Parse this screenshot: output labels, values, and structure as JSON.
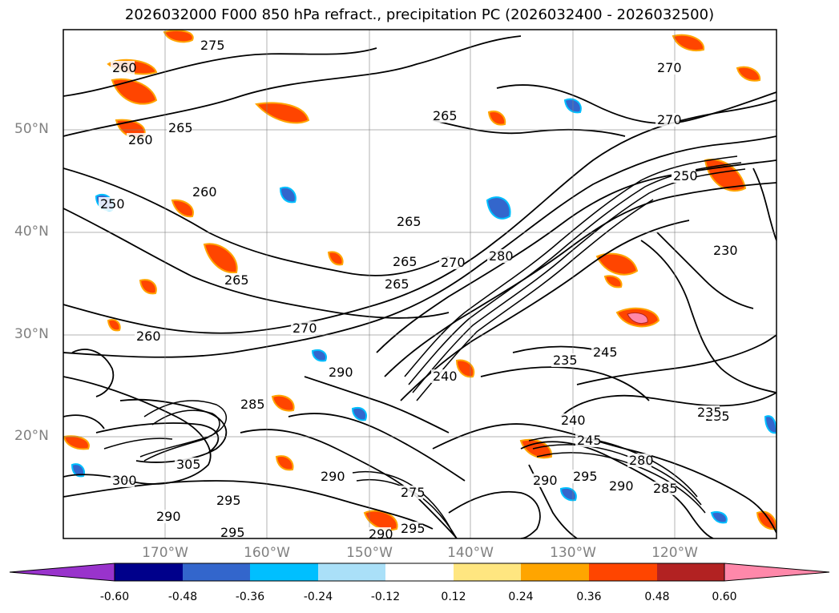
{
  "title": "2026032000 F000 850 hPa refract., precipitation PC (2026032400 - 2026032500)",
  "lat_labels": [
    "50°N",
    "40°N",
    "30°N",
    "20°N"
  ],
  "lon_labels": [
    "170°W",
    "160°W",
    "150°W",
    "140°W",
    "130°W",
    "120°W"
  ],
  "colorbar": {
    "ticks": [
      "-0.60",
      "-0.48",
      "-0.36",
      "-0.24",
      "-0.12",
      "0.12",
      "0.24",
      "0.36",
      "0.48",
      "0.60"
    ],
    "colors": [
      "#9933cc",
      "#00008b",
      "#3366cc",
      "#00bfff",
      "#aae0f8",
      "#ffffff",
      "#ffe680",
      "#ffa500",
      "#ff4500",
      "#b22222",
      "#ff88aa"
    ]
  },
  "contour_labels": [
    "275",
    "260",
    "265",
    "260",
    "265",
    "260",
    "250",
    "260",
    "250",
    "265",
    "265",
    "270",
    "280",
    "265",
    "270",
    "270",
    "275",
    "290",
    "240",
    "235",
    "245",
    "245",
    "235",
    "240",
    "280",
    "290",
    "295",
    "290",
    "285",
    "295",
    "300",
    "305",
    "290",
    "295",
    "295",
    "290",
    "285",
    "290",
    "230",
    "235",
    "250",
    "270",
    "265"
  ]
}
